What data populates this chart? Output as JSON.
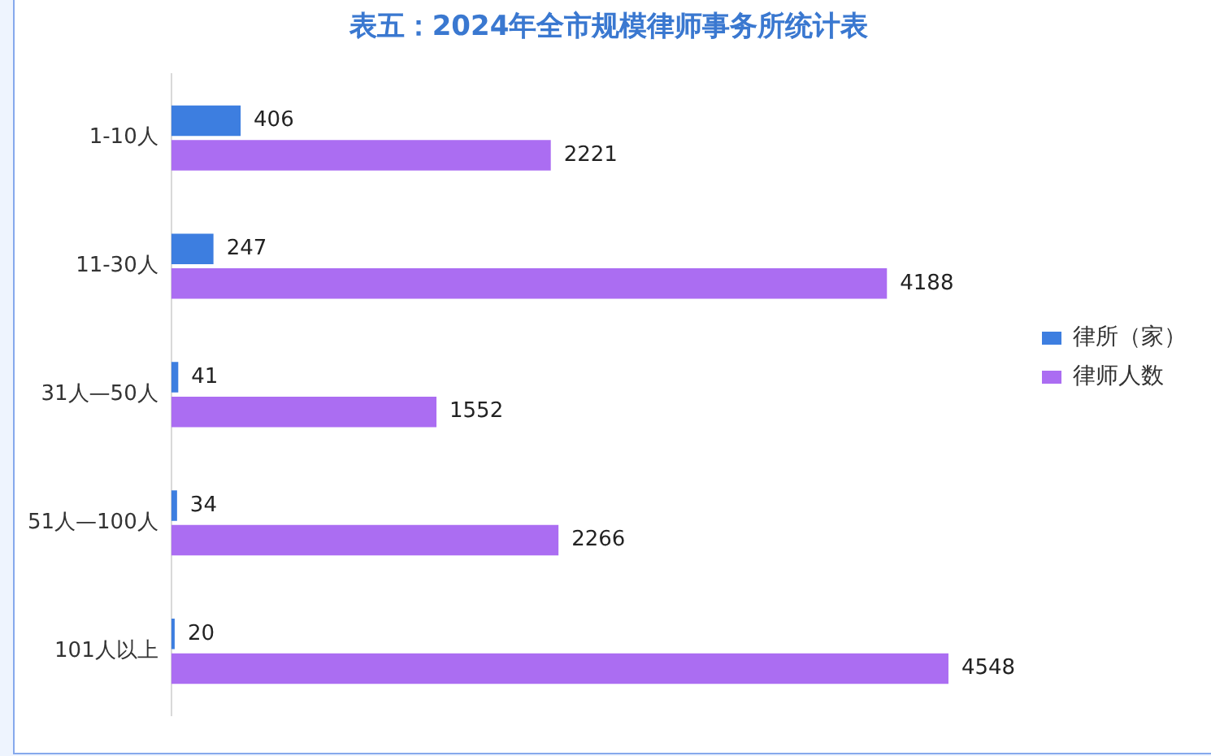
{
  "chart_data": {
    "type": "bar",
    "orientation": "horizontal",
    "title": "表五：2024年全市规模律师事务所统计表",
    "categories": [
      "1-10人",
      "11-30人",
      "31人—50人",
      "51人—100人",
      "101人以上"
    ],
    "series": [
      {
        "name": "律所（家）",
        "color": "#3d7ee0",
        "values": [
          406,
          247,
          41,
          34,
          20
        ]
      },
      {
        "name": "律师人数",
        "color": "#ab6df2",
        "values": [
          2221,
          4188,
          1552,
          2266,
          4548
        ]
      }
    ],
    "data_labels": true,
    "legend": "right",
    "tick_labels": "y"
  }
}
